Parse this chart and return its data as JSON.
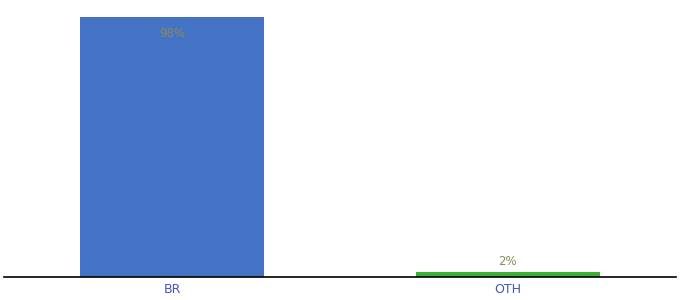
{
  "categories": [
    "BR",
    "OTH"
  ],
  "values": [
    98,
    2
  ],
  "bar_colors": [
    "#4472C4",
    "#3CB034"
  ],
  "label_color": "#8B8B5A",
  "labels": [
    "98%",
    "2%"
  ],
  "label_inside": [
    true,
    false
  ],
  "background_color": "#ffffff",
  "ylim": [
    0,
    103
  ],
  "bar_width": 0.55,
  "xlabel": "",
  "ylabel": "",
  "label_fontsize": 8.5,
  "tick_fontsize": 9,
  "tick_color": "#4455BB",
  "xlim": [
    -0.5,
    1.5
  ]
}
